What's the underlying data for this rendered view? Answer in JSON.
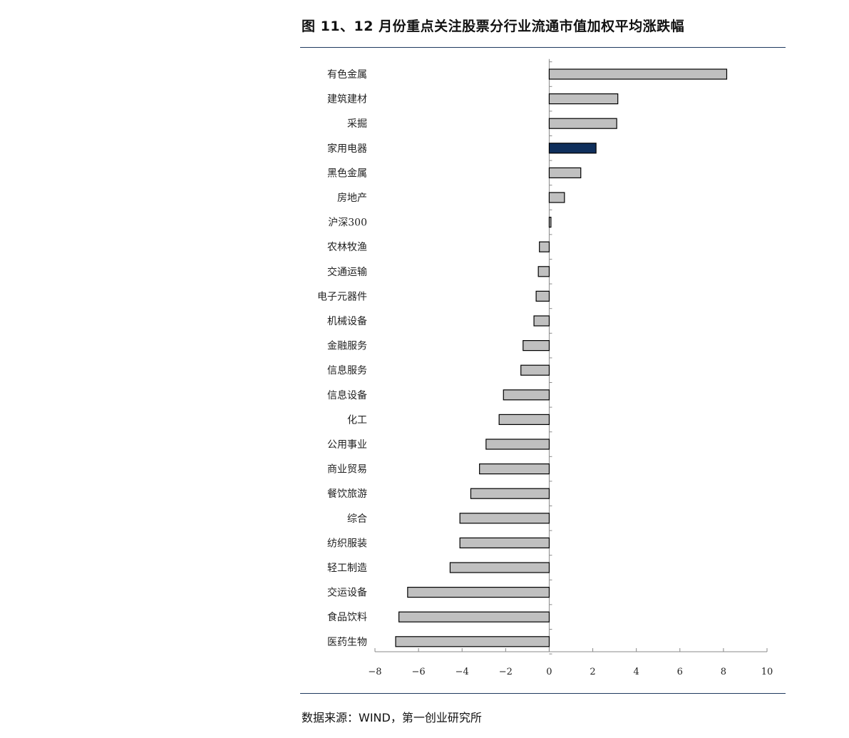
{
  "header": {
    "title": "图 11、12 月份重点关注股票分行业流通市值加权平均涨跌幅"
  },
  "footer": {
    "source": "数据来源：WIND，第一创业研究所"
  },
  "colors": {
    "bar_default": "#c0c0c0",
    "bar_highlight": "#0f2f5c",
    "bar_outline": "#000000",
    "rule": "#1f3a5f"
  },
  "chart_data": {
    "type": "bar",
    "orientation": "horizontal",
    "categories": [
      "有色金属",
      "建筑建材",
      "采掘",
      "家用电器",
      "黑色金属",
      "房地产",
      "沪深300",
      "农林牧渔",
      "交通运输",
      "电子元器件",
      "机械设备",
      "金融服务",
      "信息服务",
      "信息设备",
      "化工",
      "公用事业",
      "商业贸易",
      "餐饮旅游",
      "综合",
      "纺织服装",
      "轻工制造",
      "交运设备",
      "食品饮料",
      "医药生物"
    ],
    "values": [
      8.15,
      3.15,
      3.1,
      2.15,
      1.45,
      0.7,
      0.08,
      -0.45,
      -0.5,
      -0.6,
      -0.7,
      -1.2,
      -1.3,
      -2.1,
      -2.3,
      -2.9,
      -3.2,
      -3.6,
      -4.1,
      -4.1,
      -4.55,
      -6.5,
      -6.9,
      -7.05
    ],
    "highlight": "家用电器",
    "xlim": [
      -8,
      10
    ],
    "xticks": [
      "-8",
      "-6",
      "-4",
      "-2",
      "0",
      "2",
      "4",
      "6",
      "8",
      "10"
    ],
    "title": "",
    "xlabel": "",
    "ylabel": "",
    "grid": false,
    "legend": "none"
  }
}
